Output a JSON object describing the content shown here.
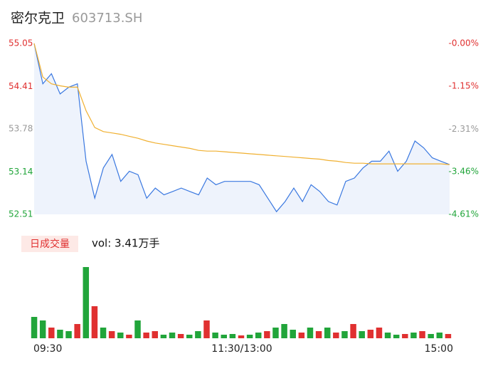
{
  "chart_data": [
    {
      "type": "line",
      "title": "密尔克卫",
      "subtitle": "603713.SH",
      "categories": [
        "09:30",
        null,
        null,
        null,
        null,
        null,
        null,
        null,
        null,
        null,
        null,
        null,
        null,
        null,
        null,
        null,
        null,
        null,
        null,
        null,
        null,
        null,
        null,
        null,
        "11:30/13:00",
        null,
        null,
        null,
        null,
        null,
        null,
        null,
        null,
        null,
        null,
        null,
        null,
        null,
        null,
        null,
        null,
        null,
        null,
        null,
        null,
        null,
        null,
        null,
        "15:00"
      ],
      "series": [
        {
          "name": "price",
          "color": "#3a78e0",
          "values": [
            55.05,
            54.45,
            54.6,
            54.3,
            54.4,
            54.45,
            53.3,
            52.75,
            53.2,
            53.4,
            53.0,
            53.15,
            53.1,
            52.75,
            52.9,
            52.8,
            52.85,
            52.9,
            52.85,
            52.8,
            53.05,
            52.95,
            53.0,
            53.0,
            53.0,
            53.0,
            52.95,
            52.75,
            52.55,
            52.7,
            52.9,
            52.7,
            52.95,
            52.85,
            52.7,
            52.65,
            53.0,
            53.05,
            53.2,
            53.3,
            53.3,
            53.45,
            53.15,
            53.3,
            53.6,
            53.5,
            53.35,
            53.3,
            53.25
          ]
        },
        {
          "name": "average",
          "color": "#f0b030",
          "values": [
            55.05,
            54.55,
            54.45,
            54.42,
            54.4,
            54.4,
            54.05,
            53.8,
            53.74,
            53.72,
            53.7,
            53.67,
            53.64,
            53.6,
            53.57,
            53.55,
            53.53,
            53.51,
            53.49,
            53.46,
            53.45,
            53.45,
            53.44,
            53.43,
            53.42,
            53.41,
            53.4,
            53.39,
            53.38,
            53.37,
            53.36,
            53.35,
            53.34,
            53.33,
            53.31,
            53.3,
            53.28,
            53.27,
            53.27,
            53.26,
            53.26,
            53.26,
            53.26,
            53.26,
            53.26,
            53.26,
            53.26,
            53.26,
            53.25
          ]
        }
      ],
      "ylim": [
        52.51,
        55.05
      ],
      "yticks": [
        52.51,
        53.14,
        53.78,
        54.41,
        55.05
      ],
      "yticks_colors": [
        "#21a53a",
        "#21a53a",
        "#999999",
        "#e03030",
        "#e03030"
      ],
      "y2lim": [
        -4.61,
        0
      ],
      "y2ticks": [
        {
          "value": -4.61,
          "label": "-4.61%"
        },
        {
          "value": -3.46,
          "label": "-3.46%"
        },
        {
          "value": -2.31,
          "label": "-2.31%"
        },
        {
          "value": -1.15,
          "label": "-1.15%"
        },
        {
          "value": 0,
          "label": "-0.00%"
        }
      ],
      "y2ticks_colors": [
        "#21a53a",
        "#21a53a",
        "#999999",
        "#e03030",
        "#e03030"
      ]
    },
    {
      "type": "bar",
      "title": "日成交量",
      "subtitle": "vol: 3.41万手",
      "values": [
        30,
        25,
        15,
        12,
        10,
        20,
        100,
        45,
        15,
        10,
        8,
        5,
        25,
        8,
        10,
        5,
        8,
        6,
        5,
        10,
        25,
        8,
        5,
        6,
        4,
        5,
        8,
        10,
        15,
        20,
        12,
        8,
        15,
        10,
        15,
        8,
        10,
        20,
        10,
        12,
        15,
        8,
        5,
        6,
        8,
        10,
        6,
        8,
        6
      ],
      "colors": [
        "#21a53a",
        "#21a53a",
        "#e03030",
        "#21a53a",
        "#21a53a",
        "#e03030",
        "#21a53a",
        "#e03030",
        "#21a53a",
        "#e03030",
        "#21a53a",
        "#e03030",
        "#21a53a",
        "#e03030",
        "#e03030",
        "#21a53a",
        "#21a53a",
        "#e03030",
        "#21a53a",
        "#21a53a",
        "#e03030",
        "#21a53a",
        "#21a53a",
        "#21a53a",
        "#e03030",
        "#21a53a",
        "#21a53a",
        "#e03030",
        "#21a53a",
        "#21a53a",
        "#21a53a",
        "#e03030",
        "#21a53a",
        "#e03030",
        "#21a53a",
        "#e03030",
        "#21a53a",
        "#e03030",
        "#21a53a",
        "#e03030",
        "#e03030",
        "#21a53a",
        "#21a53a",
        "#e03030",
        "#21a53a",
        "#e03030",
        "#21a53a",
        "#21a53a",
        "#e03030"
      ],
      "ylim": [
        0,
        100
      ]
    }
  ]
}
